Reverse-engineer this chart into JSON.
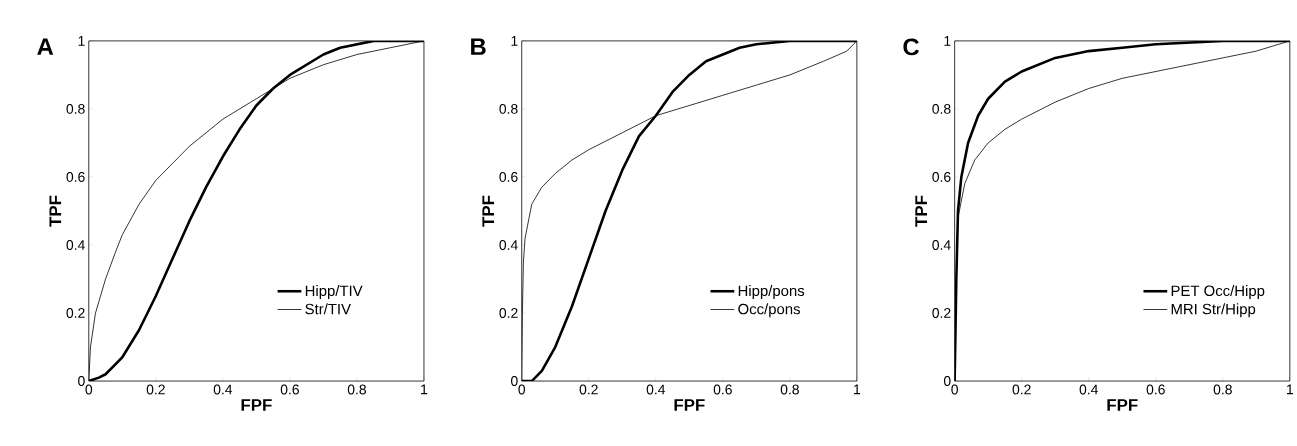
{
  "chart_data": [
    {
      "type": "line",
      "title": "A",
      "xlabel": "FPF",
      "ylabel": "TPF",
      "xlim": [
        0,
        1
      ],
      "ylim": [
        0,
        1
      ],
      "xticks": [
        0,
        0.2,
        0.4,
        0.6,
        0.8,
        1
      ],
      "yticks": [
        0,
        0.2,
        0.4,
        0.6,
        0.8,
        1
      ],
      "legend": "bottom right",
      "line_style": "solid",
      "series": [
        {
          "name": "Hipp/TIV",
          "color": "#000000",
          "x": [
            0,
            0.03,
            0.05,
            0.08,
            0.1,
            0.15,
            0.2,
            0.25,
            0.3,
            0.35,
            0.4,
            0.45,
            0.5,
            0.55,
            0.6,
            0.65,
            0.7,
            0.75,
            0.8,
            0.85,
            1
          ],
          "values": [
            0,
            0.01,
            0.02,
            0.05,
            0.07,
            0.15,
            0.25,
            0.36,
            0.47,
            0.57,
            0.66,
            0.74,
            0.81,
            0.86,
            0.9,
            0.93,
            0.96,
            0.98,
            0.99,
            1,
            1
          ]
        },
        {
          "name": "Str/TIV",
          "color": "#000000",
          "x": [
            0,
            0.005,
            0.02,
            0.05,
            0.08,
            0.1,
            0.15,
            0.2,
            0.25,
            0.3,
            0.4,
            0.5,
            0.6,
            0.7,
            0.8,
            0.9,
            1
          ],
          "values": [
            0,
            0.1,
            0.2,
            0.3,
            0.38,
            0.43,
            0.52,
            0.59,
            0.64,
            0.69,
            0.77,
            0.83,
            0.89,
            0.93,
            0.96,
            0.98,
            1
          ]
        }
      ]
    },
    {
      "type": "line",
      "title": "B",
      "xlabel": "FPF",
      "ylabel": "TPF",
      "xlim": [
        0,
        1
      ],
      "ylim": [
        0,
        1
      ],
      "xticks": [
        0,
        0.2,
        0.4,
        0.6,
        0.8,
        1
      ],
      "yticks": [
        0,
        0.2,
        0.4,
        0.6,
        0.8,
        1
      ],
      "legend": "bottom right",
      "line_style": "solid",
      "series": [
        {
          "name": "Hipp/pons",
          "color": "#000000",
          "x": [
            0,
            0.03,
            0.06,
            0.1,
            0.15,
            0.2,
            0.25,
            0.3,
            0.35,
            0.4,
            0.45,
            0.5,
            0.55,
            0.6,
            0.65,
            0.7,
            0.8,
            1
          ],
          "values": [
            0,
            0,
            0.03,
            0.1,
            0.22,
            0.36,
            0.5,
            0.62,
            0.72,
            0.78,
            0.85,
            0.9,
            0.94,
            0.96,
            0.98,
            0.99,
            1,
            1
          ]
        },
        {
          "name": "Occ/pons",
          "color": "#000000",
          "x": [
            0,
            0.002,
            0.005,
            0.01,
            0.03,
            0.06,
            0.1,
            0.15,
            0.2,
            0.3,
            0.4,
            0.5,
            0.6,
            0.7,
            0.8,
            0.9,
            0.97,
            1
          ],
          "values": [
            0,
            0.2,
            0.35,
            0.42,
            0.52,
            0.57,
            0.61,
            0.65,
            0.68,
            0.73,
            0.78,
            0.81,
            0.84,
            0.87,
            0.9,
            0.94,
            0.97,
            1
          ]
        }
      ]
    },
    {
      "type": "line",
      "title": "C",
      "xlabel": "FPF",
      "ylabel": "TPF",
      "xlim": [
        0,
        1
      ],
      "ylim": [
        0,
        1
      ],
      "xticks": [
        0,
        0.2,
        0.4,
        0.6,
        0.8,
        1
      ],
      "yticks": [
        0,
        0.2,
        0.4,
        0.6,
        0.8,
        1
      ],
      "legend": "bottom right",
      "line_style": "solid",
      "series": [
        {
          "name": "PET Occ/Hipp",
          "color": "#000000",
          "x": [
            0,
            0.005,
            0.01,
            0.02,
            0.04,
            0.07,
            0.1,
            0.15,
            0.2,
            0.3,
            0.4,
            0.5,
            0.6,
            0.8,
            1
          ],
          "values": [
            0,
            0.3,
            0.5,
            0.6,
            0.7,
            0.78,
            0.83,
            0.88,
            0.91,
            0.95,
            0.97,
            0.98,
            0.99,
            1,
            1
          ]
        },
        {
          "name": "MRI Str/Hipp",
          "color": "#000000",
          "x": [
            0,
            0.005,
            0.01,
            0.03,
            0.06,
            0.1,
            0.15,
            0.2,
            0.3,
            0.4,
            0.5,
            0.6,
            0.7,
            0.8,
            0.9,
            1
          ],
          "values": [
            0,
            0.3,
            0.48,
            0.58,
            0.65,
            0.7,
            0.74,
            0.77,
            0.82,
            0.86,
            0.89,
            0.91,
            0.93,
            0.95,
            0.97,
            1
          ]
        }
      ]
    }
  ]
}
